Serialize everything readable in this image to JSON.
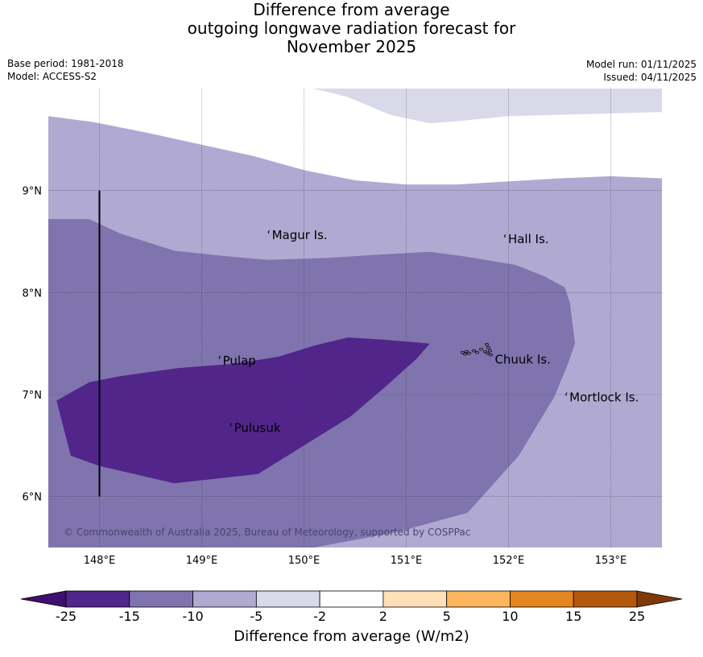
{
  "title": {
    "line1": "Difference from average",
    "line2": "outgoing longwave radiation forecast for",
    "line3": "November 2025"
  },
  "info_left": {
    "base_period": "Base period: 1981-2018",
    "model": "Model: ACCESS-S2"
  },
  "info_right": {
    "model_run": "Model run: 01/11/2025",
    "issued": "Issued: 04/11/2025"
  },
  "map": {
    "lon_range": [
      147.5,
      153.5
    ],
    "lat_range": [
      5.5,
      10.0
    ],
    "x_ticks": [
      {
        "value": 148,
        "label": "148°E"
      },
      {
        "value": 149,
        "label": "149°E"
      },
      {
        "value": 150,
        "label": "150°E"
      },
      {
        "value": 151,
        "label": "151°E"
      },
      {
        "value": 152,
        "label": "152°E"
      },
      {
        "value": 153,
        "label": "153°E"
      }
    ],
    "y_ticks": [
      {
        "value": 9,
        "label": "9°N"
      },
      {
        "value": 8,
        "label": "8°N"
      },
      {
        "value": 7,
        "label": "7°N"
      },
      {
        "value": 6,
        "label": "6°N"
      }
    ],
    "places": [
      {
        "name": "Magur Is.",
        "lon": 149.67,
        "lat": 8.57
      },
      {
        "name": "Hall Is.",
        "lon": 151.98,
        "lat": 8.53
      },
      {
        "name": "Pulap",
        "lon": 149.19,
        "lat": 7.34
      },
      {
        "name": "Chuuk Is.",
        "lon": 151.85,
        "lat": 7.35
      },
      {
        "name": "Mortlock Is.",
        "lon": 152.58,
        "lat": 6.98
      },
      {
        "name": "Pulusuk",
        "lon": 149.3,
        "lat": 6.68
      }
    ],
    "boundary_line": {
      "lon": 148.0,
      "lat_from": 6.0,
      "lat_to": 9.0
    },
    "copyright": "© Commonwealth of Australia 2025, Bureau of Meteorology, supported by COSPPac",
    "regions": [
      {
        "level": "-5 to -2",
        "color": "#d9d9ea",
        "coords": [
          [
            147.5,
            10
          ],
          [
            153.5,
            10
          ],
          [
            153.5,
            9.77
          ],
          [
            152.4,
            9.74
          ],
          [
            152.0,
            9.73
          ],
          [
            151.5,
            9.68
          ],
          [
            151.23,
            9.66
          ],
          [
            150.85,
            9.74
          ],
          [
            150.42,
            9.92
          ],
          [
            150.09,
            10
          ]
        ]
      },
      {
        "level": "-10 to -5",
        "color": "#b0aad2",
        "coords": [
          [
            147.5,
            9.73
          ],
          [
            147.95,
            9.67
          ],
          [
            148.5,
            9.56
          ],
          [
            149.0,
            9.45
          ],
          [
            149.5,
            9.34
          ],
          [
            150.0,
            9.2
          ],
          [
            150.5,
            9.1
          ],
          [
            151.0,
            9.06
          ],
          [
            151.5,
            9.06
          ],
          [
            152.0,
            9.09
          ],
          [
            152.5,
            9.12
          ],
          [
            153.0,
            9.14
          ],
          [
            153.5,
            9.12
          ],
          [
            153.5,
            5.5
          ],
          [
            147.5,
            5.5
          ]
        ]
      },
      {
        "level": "-15 to -10",
        "color": "#7f74ad",
        "coords": [
          [
            147.5,
            8.72
          ],
          [
            147.9,
            8.72
          ],
          [
            148.2,
            8.58
          ],
          [
            148.73,
            8.41
          ],
          [
            149.2,
            8.36
          ],
          [
            149.65,
            8.32
          ],
          [
            150.24,
            8.34
          ],
          [
            150.7,
            8.37
          ],
          [
            151.23,
            8.4
          ],
          [
            151.6,
            8.35
          ],
          [
            152.07,
            8.27
          ],
          [
            152.35,
            8.16
          ],
          [
            152.55,
            8.05
          ],
          [
            152.6,
            7.9
          ],
          [
            152.65,
            7.5
          ],
          [
            152.58,
            7.3
          ],
          [
            152.45,
            6.98
          ],
          [
            152.1,
            6.4
          ],
          [
            151.6,
            5.84
          ],
          [
            150.9,
            5.65
          ],
          [
            150.1,
            5.5
          ],
          [
            147.5,
            5.5
          ]
        ]
      },
      {
        "level": "-25 to -15",
        "color": "#51258a",
        "coords": [
          [
            147.58,
            6.94
          ],
          [
            147.72,
            6.4
          ],
          [
            148.0,
            6.3
          ],
          [
            148.73,
            6.13
          ],
          [
            149.55,
            6.22
          ],
          [
            150.0,
            6.5
          ],
          [
            150.45,
            6.78
          ],
          [
            150.8,
            7.08
          ],
          [
            151.1,
            7.35
          ],
          [
            151.23,
            7.5
          ],
          [
            150.75,
            7.54
          ],
          [
            150.43,
            7.56
          ],
          [
            150.1,
            7.48
          ],
          [
            149.75,
            7.37
          ],
          [
            149.3,
            7.3
          ],
          [
            148.77,
            7.26
          ],
          [
            148.2,
            7.18
          ],
          [
            147.9,
            7.12
          ]
        ]
      }
    ]
  },
  "colorbar": {
    "colors": [
      "#3e0f6e",
      "#51258a",
      "#7f74ad",
      "#b0aad2",
      "#d9d9ea",
      "#ffffff",
      "#fde0b8",
      "#fbb55c",
      "#e3861d",
      "#b3580a",
      "#7f3a08"
    ],
    "labels": [
      "-25",
      "-15",
      "-10",
      "-5",
      "-2",
      "2",
      "5",
      "10",
      "15",
      "25"
    ],
    "axis_label": "Difference from average (W/m2)"
  }
}
